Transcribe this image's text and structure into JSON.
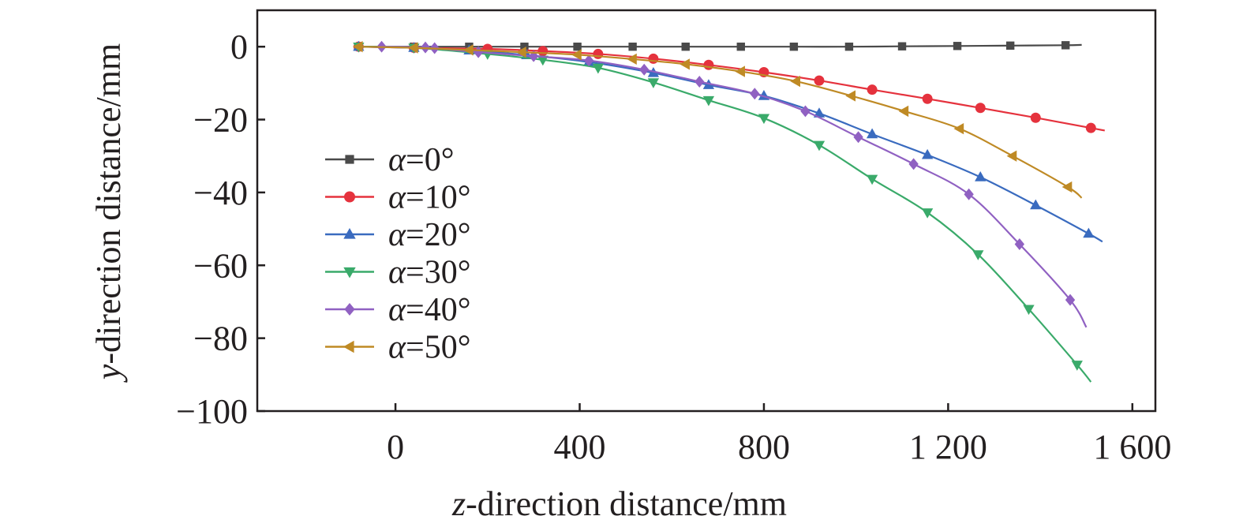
{
  "chart_data": {
    "type": "line",
    "title": "",
    "xlabel_var": "z",
    "xlabel_rest": "-direction distance/mm",
    "ylabel_var": "y",
    "ylabel_rest": "-direction distance/mm",
    "xlim": [
      -300,
      1650
    ],
    "ylim": [
      -100,
      10
    ],
    "xticks": [
      0,
      400,
      800,
      1200,
      1600
    ],
    "xtick_labels": [
      "0",
      "400",
      "800",
      "1 200",
      "1 600"
    ],
    "yticks": [
      0,
      -20,
      -40,
      -60,
      -80,
      -100
    ],
    "ytick_labels": [
      "0",
      "−20",
      "−40",
      "−60",
      "−80",
      "−100"
    ],
    "legend_position": "left-center",
    "grid": false,
    "series": [
      {
        "name": "0°",
        "var": "α",
        "color": "#4a4a4a",
        "marker": "square",
        "points": [
          [
            -80,
            0
          ],
          [
            40,
            0
          ],
          [
            160,
            0
          ],
          [
            280,
            0
          ],
          [
            395,
            0
          ],
          [
            515,
            0
          ],
          [
            630,
            0
          ],
          [
            750,
            0
          ],
          [
            865,
            0
          ],
          [
            985,
            0
          ],
          [
            1100,
            0.1
          ],
          [
            1220,
            0.2
          ],
          [
            1335,
            0.3
          ],
          [
            1455,
            0.4
          ],
          [
            1490,
            0.5
          ]
        ]
      },
      {
        "name": "10°",
        "var": "α",
        "color": "#e5323d",
        "marker": "circle",
        "points": [
          [
            -80,
            0
          ],
          [
            40,
            -0.3
          ],
          [
            200,
            -0.6
          ],
          [
            320,
            -1.2
          ],
          [
            440,
            -2.0
          ],
          [
            560,
            -3.3
          ],
          [
            680,
            -5.0
          ],
          [
            800,
            -7.0
          ],
          [
            920,
            -9.3
          ],
          [
            1035,
            -11.8
          ],
          [
            1155,
            -14.3
          ],
          [
            1270,
            -16.8
          ],
          [
            1390,
            -19.5
          ],
          [
            1510,
            -22.3
          ],
          [
            1540,
            -23.0
          ]
        ]
      },
      {
        "name": "20°",
        "var": "α",
        "color": "#3a6bbf",
        "marker": "triangle-up",
        "points": [
          [
            -80,
            0
          ],
          [
            40,
            -0.3
          ],
          [
            160,
            -1.0
          ],
          [
            285,
            -2.3
          ],
          [
            420,
            -4.2
          ],
          [
            560,
            -7.2
          ],
          [
            680,
            -10.5
          ],
          [
            800,
            -13.5
          ],
          [
            920,
            -18.3
          ],
          [
            1035,
            -24.0
          ],
          [
            1155,
            -29.7
          ],
          [
            1270,
            -35.8
          ],
          [
            1390,
            -43.5
          ],
          [
            1505,
            -51.3
          ],
          [
            1535,
            -53.5
          ]
        ]
      },
      {
        "name": "30°",
        "var": "α",
        "color": "#3aaa6a",
        "marker": "triangle-down",
        "points": [
          [
            -80,
            0
          ],
          [
            40,
            -0.3
          ],
          [
            200,
            -2.0
          ],
          [
            320,
            -3.6
          ],
          [
            440,
            -5.8
          ],
          [
            560,
            -9.8
          ],
          [
            680,
            -14.7
          ],
          [
            800,
            -19.6
          ],
          [
            920,
            -27.0
          ],
          [
            1035,
            -36.3
          ],
          [
            1155,
            -45.5
          ],
          [
            1265,
            -57.0
          ],
          [
            1375,
            -72.0
          ],
          [
            1480,
            -87.3
          ],
          [
            1510,
            -92.0
          ]
        ]
      },
      {
        "name": "40°",
        "var": "α",
        "color": "#9061c2",
        "marker": "diamond",
        "points": [
          [
            -30,
            0
          ],
          [
            65,
            -0.2
          ],
          [
            85,
            -0.4
          ],
          [
            180,
            -1.5
          ],
          [
            300,
            -2.6
          ],
          [
            420,
            -3.8
          ],
          [
            540,
            -6.3
          ],
          [
            660,
            -9.6
          ],
          [
            780,
            -12.9
          ],
          [
            890,
            -17.7
          ],
          [
            1005,
            -24.8
          ],
          [
            1125,
            -32.2
          ],
          [
            1245,
            -40.5
          ],
          [
            1355,
            -54.2
          ],
          [
            1465,
            -69.5
          ],
          [
            1500,
            -77.0
          ]
        ]
      },
      {
        "name": "50°",
        "var": "α",
        "color": "#bf8a25",
        "marker": "triangle-left",
        "points": [
          [
            -80,
            0
          ],
          [
            40,
            -0.3
          ],
          [
            160,
            -0.9
          ],
          [
            275,
            -1.5
          ],
          [
            395,
            -2.2
          ],
          [
            515,
            -3.4
          ],
          [
            630,
            -4.8
          ],
          [
            750,
            -6.8
          ],
          [
            870,
            -9.5
          ],
          [
            990,
            -13.5
          ],
          [
            1105,
            -17.7
          ],
          [
            1225,
            -22.5
          ],
          [
            1340,
            -30.0
          ],
          [
            1460,
            -38.5
          ],
          [
            1490,
            -41.5
          ]
        ]
      }
    ]
  }
}
